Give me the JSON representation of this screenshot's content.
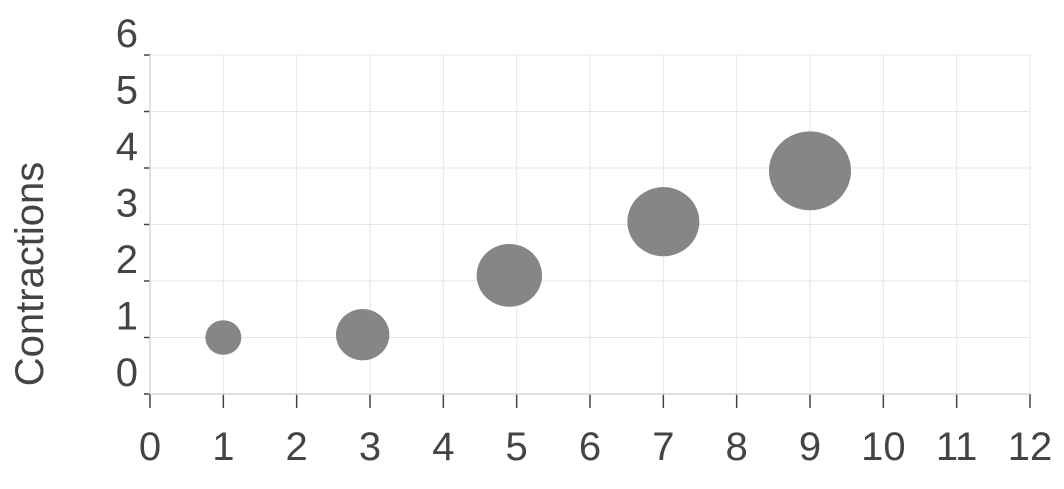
{
  "chart_data": {
    "type": "bubble",
    "title": "",
    "xlabel": "",
    "ylabel": "Contractions",
    "xlim": [
      0,
      12
    ],
    "ylim": [
      0,
      6
    ],
    "x_ticks": [
      "0",
      "1",
      "2",
      "3",
      "4",
      "5",
      "6",
      "7",
      "8",
      "9",
      "10",
      "11",
      "12"
    ],
    "y_ticks": [
      "0",
      "1",
      "2",
      "3",
      "4",
      "5",
      "6"
    ],
    "grid": true,
    "bubble_color": "#868686",
    "points": [
      {
        "x": 1.0,
        "y": 1.0,
        "size": 1
      },
      {
        "x": 2.9,
        "y": 1.05,
        "size": 2.2
      },
      {
        "x": 4.9,
        "y": 2.1,
        "size": 3.3
      },
      {
        "x": 7.0,
        "y": 3.05,
        "size": 4.0
      },
      {
        "x": 9.0,
        "y": 3.95,
        "size": 5.2
      }
    ]
  }
}
